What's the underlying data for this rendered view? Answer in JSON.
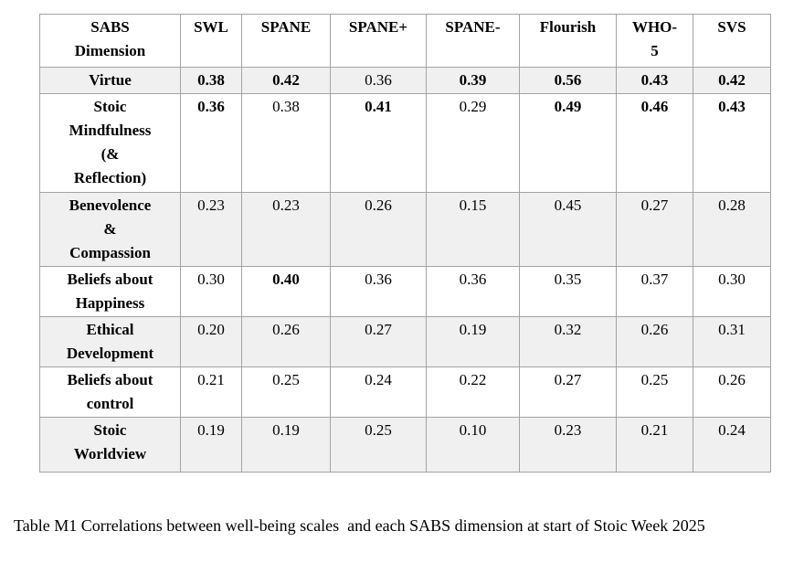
{
  "table": {
    "columns": [
      "SABS\nDimension",
      "SWL",
      "SPANE",
      "SPANE+",
      "SPANE-",
      "Flourish",
      "WHO-\n5",
      "SVS"
    ],
    "rows": [
      {
        "dimension": "Virtue",
        "values": [
          "0.38",
          "0.42",
          "0.36",
          "0.39",
          "0.56",
          "0.43",
          "0.42"
        ],
        "bold": [
          true,
          true,
          false,
          true,
          true,
          true,
          true
        ]
      },
      {
        "dimension": "Stoic\nMindfulness\n(&\nReflection)",
        "values": [
          "0.36",
          "0.38",
          "0.41",
          "0.29",
          "0.49",
          "0.46",
          "0.43"
        ],
        "bold": [
          true,
          false,
          true,
          false,
          true,
          true,
          true
        ]
      },
      {
        "dimension": "Benevolence\n&\nCompassion",
        "values": [
          "0.23",
          "0.23",
          "0.26",
          "0.15",
          "0.45",
          "0.27",
          "0.28"
        ],
        "bold": [
          false,
          false,
          false,
          false,
          false,
          false,
          false
        ]
      },
      {
        "dimension": "Beliefs about\nHappiness",
        "values": [
          "0.30",
          "0.40",
          "0.36",
          "0.36",
          "0.35",
          "0.37",
          "0.30"
        ],
        "bold": [
          false,
          true,
          false,
          false,
          false,
          false,
          false
        ]
      },
      {
        "dimension": "Ethical\nDevelopment",
        "values": [
          "0.20",
          "0.26",
          "0.27",
          "0.19",
          "0.32",
          "0.26",
          "0.31"
        ],
        "bold": [
          false,
          false,
          false,
          false,
          false,
          false,
          false
        ]
      },
      {
        "dimension": "Beliefs about\ncontrol",
        "values": [
          "0.21",
          "0.25",
          "0.24",
          "0.22",
          "0.27",
          "0.25",
          "0.26"
        ],
        "bold": [
          false,
          false,
          false,
          false,
          false,
          false,
          false
        ]
      },
      {
        "dimension": "Stoic\nWorldview",
        "values": [
          "0.19",
          "0.19",
          "0.25",
          "0.10",
          "0.23",
          "0.21",
          "0.24"
        ],
        "bold": [
          false,
          false,
          false,
          false,
          false,
          false,
          false
        ]
      }
    ]
  },
  "caption": "Table M1 Correlations between well-being scales  and each SABS dimension at start of Stoic Week 2025",
  "colors": {
    "row_shaded": "#f0f0f0",
    "border": "#a3a3a3",
    "text": "#000000",
    "background": "#ffffff"
  }
}
